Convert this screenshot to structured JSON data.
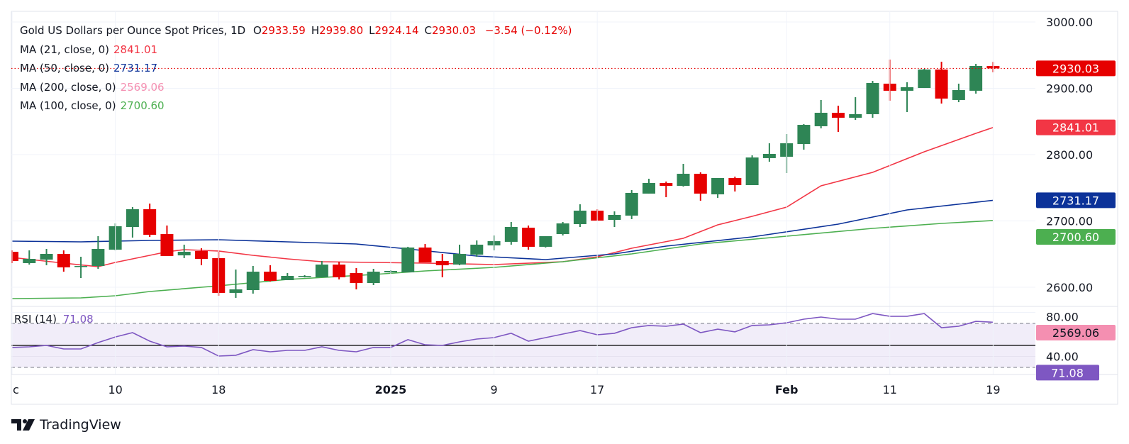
{
  "header": {
    "symbol": "Gold US Dollars per Ounce Spot Prices, 1D",
    "ohlc": [
      {
        "key": "O",
        "value": "2933.59"
      },
      {
        "key": "H",
        "value": "2939.80"
      },
      {
        "key": "L",
        "value": "2924.14"
      },
      {
        "key": "C",
        "value": "2930.03"
      }
    ],
    "change": "−3.54 (−0.12%)"
  },
  "moving_averages": [
    {
      "label": "MA (21, close, 0)",
      "value": "2841.01",
      "color": "#f23645"
    },
    {
      "label": "MA (50, close, 0)",
      "value": "2731.17",
      "color": "#0c3299"
    },
    {
      "label": "MA (200, close, 0)",
      "value": "2569.06",
      "color": "#f48fb1"
    },
    {
      "label": "MA (100, close, 0)",
      "value": "2700.60",
      "color": "#4caf50"
    }
  ],
  "rsi_legend": {
    "label": "RSI (14)",
    "value": "71.08",
    "color": "#7e57c2"
  },
  "brand": {
    "name": "TradingView"
  },
  "colors": {
    "up": "#2e8555",
    "down": "#e60000",
    "last_price": "#e60000",
    "rsi": "#7e57c2",
    "rsi_band": "#f1edf9"
  },
  "chart_data": {
    "type": "candlestick",
    "title": "Gold US Dollars per Ounce Spot Prices, 1D",
    "price_axis": {
      "ticks": [
        "3000.00",
        "2900.00",
        "2800.00",
        "2700.00",
        "2600.00"
      ],
      "range": [
        2560,
        3000
      ]
    },
    "rsi_axis": {
      "ticks": [
        "80.00",
        "40.00"
      ],
      "bands": [
        70,
        30
      ],
      "midline": 50
    },
    "x_ticks": [
      {
        "date": "2024-12-02",
        "label": "c"
      },
      {
        "date": "2024-12-10",
        "label": "10"
      },
      {
        "date": "2024-12-18",
        "label": "18"
      },
      {
        "date": "2025-01-01",
        "label": "2025"
      },
      {
        "date": "2025-01-09",
        "label": "9"
      },
      {
        "date": "2025-01-17",
        "label": "17"
      },
      {
        "date": "2025-02-03",
        "label": "Feb"
      },
      {
        "date": "2025-02-11",
        "label": "11"
      },
      {
        "date": "2025-02-19",
        "label": "19"
      }
    ],
    "grid": true,
    "candles_columns": [
      "date",
      "open",
      "high",
      "low",
      "close"
    ],
    "candles": [
      [
        "2024-12-02",
        2653.5,
        2655.6,
        2636.4,
        2639.6
      ],
      [
        "2024-12-03",
        2636.4,
        2655.6,
        2634.2,
        2642.8
      ],
      [
        "2024-12-04",
        2641.7,
        2657.8,
        2633.2,
        2650.3
      ],
      [
        "2024-12-05",
        2650.3,
        2655.6,
        2623.5,
        2630.0
      ],
      [
        "2024-12-06",
        2631.0,
        2646.0,
        2613.9,
        2632.1
      ],
      [
        "2024-12-09",
        2632.1,
        2677.0,
        2627.8,
        2657.8
      ],
      [
        "2024-12-10",
        2656.7,
        2696.3,
        2655.6,
        2692.0
      ],
      [
        "2024-12-11",
        2690.9,
        2720.9,
        2674.9,
        2717.7
      ],
      [
        "2024-12-12",
        2717.7,
        2726.2,
        2675.9,
        2679.1
      ],
      [
        "2024-12-13",
        2680.2,
        2693.1,
        2647.1,
        2647.1
      ],
      [
        "2024-12-16",
        2648.1,
        2664.2,
        2643.9,
        2653.5
      ],
      [
        "2024-12-17",
        2654.6,
        2658.8,
        2633.2,
        2642.8
      ],
      [
        "2024-12-18",
        2643.9,
        2653.5,
        2587.2,
        2591.5
      ],
      [
        "2024-12-19",
        2591.5,
        2626.7,
        2584.0,
        2596.8
      ],
      [
        "2024-12-20",
        2595.7,
        2632.1,
        2590.4,
        2623.5
      ],
      [
        "2024-12-23",
        2623.5,
        2633.2,
        2608.6,
        2609.6
      ],
      [
        "2024-12-24",
        2610.7,
        2621.4,
        2610.7,
        2617.1
      ],
      [
        "2024-12-25",
        2616.0,
        2618.2,
        2614.9,
        2617.1
      ],
      [
        "2024-12-26",
        2615.0,
        2639.6,
        2615.0,
        2634.2
      ],
      [
        "2024-12-27",
        2634.2,
        2638.5,
        2611.8,
        2615.0
      ],
      [
        "2024-12-30",
        2621.4,
        2628.9,
        2596.8,
        2606.4
      ],
      [
        "2024-12-31",
        2606.4,
        2627.8,
        2603.2,
        2623.5
      ],
      [
        "2025-01-01",
        2622.5,
        2625.7,
        2621.4,
        2624.6
      ],
      [
        "2025-01-02",
        2622.5,
        2661.0,
        2622.5,
        2659.9
      ],
      [
        "2025-01-03",
        2659.9,
        2665.2,
        2637.4,
        2637.4
      ],
      [
        "2025-01-06",
        2639.6,
        2650.3,
        2615.0,
        2633.2
      ],
      [
        "2025-01-07",
        2634.2,
        2664.2,
        2633.2,
        2650.3
      ],
      [
        "2025-01-08",
        2649.2,
        2670.6,
        2646.0,
        2664.2
      ],
      [
        "2025-01-09",
        2663.1,
        2678.1,
        2655.6,
        2669.5
      ],
      [
        "2025-01-10",
        2668.5,
        2698.4,
        2664.2,
        2690.9
      ],
      [
        "2025-01-13",
        2689.8,
        2693.1,
        2656.7,
        2661.0
      ],
      [
        "2025-01-14",
        2661.0,
        2677.0,
        2659.9,
        2677.0
      ],
      [
        "2025-01-15",
        2680.2,
        2698.4,
        2678.1,
        2696.3
      ],
      [
        "2025-01-16",
        2695.2,
        2725.1,
        2690.9,
        2715.5
      ],
      [
        "2025-01-17",
        2715.5,
        2717.7,
        2700.5,
        2700.5
      ],
      [
        "2025-01-20",
        2701.6,
        2714.4,
        2690.9,
        2709.1
      ],
      [
        "2025-01-21",
        2708.0,
        2746.5,
        2702.7,
        2742.3
      ],
      [
        "2025-01-22",
        2741.2,
        2763.6,
        2741.2,
        2757.2
      ],
      [
        "2025-01-23",
        2757.2,
        2759.4,
        2735.8,
        2752.9
      ],
      [
        "2025-01-24",
        2752.9,
        2786.1,
        2751.8,
        2771.1
      ],
      [
        "2025-01-27",
        2771.1,
        2773.3,
        2730.5,
        2741.2
      ],
      [
        "2025-01-28",
        2740.1,
        2764.7,
        2734.8,
        2764.7
      ],
      [
        "2025-01-29",
        2764.7,
        2766.8,
        2744.4,
        2754.0
      ],
      [
        "2025-01-30",
        2754.0,
        2798.9,
        2754.0,
        2795.7
      ],
      [
        "2025-01-31",
        2794.7,
        2817.1,
        2789.3,
        2801.1
      ],
      [
        "2025-02-03",
        2796.8,
        2831.0,
        2772.2,
        2817.1
      ],
      [
        "2025-02-04",
        2816.0,
        2846.0,
        2807.5,
        2844.9
      ],
      [
        "2025-02-05",
        2842.8,
        2882.4,
        2839.6,
        2863.1
      ],
      [
        "2025-02-06",
        2863.1,
        2873.8,
        2834.2,
        2855.6
      ],
      [
        "2025-02-07",
        2855.6,
        2886.6,
        2852.4,
        2861.0
      ],
      [
        "2025-02-10",
        2861.0,
        2911.2,
        2855.6,
        2908.0
      ],
      [
        "2025-02-11",
        2907.0,
        2943.3,
        2881.3,
        2896.3
      ],
      [
        "2025-02-12",
        2896.3,
        2909.1,
        2864.2,
        2901.6
      ],
      [
        "2025-02-13",
        2900.5,
        2929.4,
        2900.5,
        2928.3
      ],
      [
        "2025-02-14",
        2928.3,
        2940.1,
        2877.0,
        2884.5
      ],
      [
        "2025-02-17",
        2882.4,
        2907.0,
        2879.1,
        2897.3
      ],
      [
        "2025-02-18",
        2896.3,
        2936.9,
        2892.0,
        2933.7
      ],
      [
        "2025-02-19",
        2933.59,
        2939.8,
        2924.14,
        2930.03
      ]
    ],
    "series": [
      {
        "name": "MA (21, close, 0)",
        "color": "#f23645",
        "last": 2841.01,
        "points": [
          [
            "2024-12-02",
            2644.9
          ],
          [
            "2024-12-05",
            2636.4
          ],
          [
            "2024-12-09",
            2631.0
          ],
          [
            "2024-12-10",
            2637.4
          ],
          [
            "2024-12-12",
            2648.1
          ],
          [
            "2024-12-13",
            2653.5
          ],
          [
            "2024-12-16",
            2656.7
          ],
          [
            "2024-12-18",
            2654.6
          ],
          [
            "2024-12-20",
            2648.1
          ],
          [
            "2024-12-24",
            2642.8
          ],
          [
            "2024-12-26",
            2638.5
          ],
          [
            "2024-12-31",
            2637.4
          ],
          [
            "2025-01-03",
            2636.4
          ],
          [
            "2025-01-09",
            2634.2
          ],
          [
            "2025-01-15",
            2638.5
          ],
          [
            "2025-01-17",
            2645.9
          ],
          [
            "2025-01-21",
            2658.8
          ],
          [
            "2025-01-24",
            2673.8
          ],
          [
            "2025-01-28",
            2694.1
          ],
          [
            "2025-01-30",
            2707.0
          ],
          [
            "2025-02-03",
            2720.9
          ],
          [
            "2025-02-05",
            2752.9
          ],
          [
            "2025-02-10",
            2773.3
          ],
          [
            "2025-02-13",
            2804.3
          ],
          [
            "2025-02-18",
            2832.1
          ],
          [
            "2025-02-19",
            2841.01
          ]
        ]
      },
      {
        "name": "MA (50, close, 0)",
        "color": "#0c3299",
        "last": 2731.17,
        "points": [
          [
            "2024-12-02",
            2669.5
          ],
          [
            "2024-12-06",
            2668.5
          ],
          [
            "2024-12-12",
            2670.6
          ],
          [
            "2024-12-18",
            2671.7
          ],
          [
            "2024-12-24",
            2668.5
          ],
          [
            "2024-12-30",
            2665.2
          ],
          [
            "2025-01-02",
            2657.8
          ],
          [
            "2025-01-08",
            2647.1
          ],
          [
            "2025-01-14",
            2641.7
          ],
          [
            "2025-01-20",
            2650.3
          ],
          [
            "2025-01-23",
            2662.0
          ],
          [
            "2025-01-30",
            2675.9
          ],
          [
            "2025-02-06",
            2695.2
          ],
          [
            "2025-02-12",
            2716.6
          ],
          [
            "2025-02-19",
            2731.17
          ]
        ]
      },
      {
        "name": "MA (200, close, 0)",
        "color": "#f48fb1",
        "last": 2569.06,
        "points": []
      },
      {
        "name": "MA (100, close, 0)",
        "color": "#4caf50",
        "last": 2700.6,
        "points": [
          [
            "2024-12-02",
            2582.9
          ],
          [
            "2024-12-06",
            2584.0
          ],
          [
            "2024-12-10",
            2587.2
          ],
          [
            "2024-12-12",
            2593.6
          ],
          [
            "2024-12-18",
            2602.1
          ],
          [
            "2024-12-24",
            2611.8
          ],
          [
            "2024-12-31",
            2619.3
          ],
          [
            "2025-01-03",
            2624.6
          ],
          [
            "2025-01-09",
            2629.9
          ],
          [
            "2025-01-15",
            2638.5
          ],
          [
            "2025-01-21",
            2650.3
          ],
          [
            "2025-01-27",
            2665.2
          ],
          [
            "2025-02-03",
            2677.0
          ],
          [
            "2025-02-10",
            2688.8
          ],
          [
            "2025-02-14",
            2696.3
          ],
          [
            "2025-02-19",
            2700.6
          ]
        ]
      }
    ],
    "rsi": {
      "name": "RSI (14)",
      "last": 71.08,
      "values": [
        48.1,
        48.7,
        50.0,
        46.8,
        46.8,
        52.6,
        57.7,
        61.6,
        53.9,
        48.7,
        49.4,
        48.1,
        40.3,
        41.0,
        46.1,
        44.2,
        45.5,
        45.5,
        48.7,
        45.5,
        44.2,
        48.1,
        48.1,
        55.2,
        50.6,
        50.0,
        53.2,
        55.8,
        57.1,
        61.0,
        53.9,
        57.1,
        60.3,
        63.5,
        59.7,
        61.0,
        66.1,
        68.1,
        67.4,
        69.4,
        61.6,
        64.8,
        62.3,
        68.1,
        68.7,
        70.6,
        73.9,
        75.8,
        73.9,
        73.9,
        79.0,
        76.5,
        76.5,
        79.0,
        66.1,
        67.4,
        71.9,
        71.08
      ]
    },
    "price_tags": [
      {
        "value": "2930.03",
        "price": 2930.03,
        "bg": "#e60000",
        "fg": "#ffffff"
      },
      {
        "value": "2841.01",
        "price": 2841.01,
        "bg": "#f23645",
        "fg": "#ffffff"
      },
      {
        "value": "2731.17",
        "price": 2731.17,
        "bg": "#0c3299",
        "fg": "#ffffff"
      },
      {
        "value": "2700.60",
        "price": 2700.6,
        "bg": "#4caf50",
        "fg": "#ffffff"
      },
      {
        "value": "2569.06",
        "price": 2569.06,
        "bg": "#f48fb1",
        "fg": "#131722"
      }
    ],
    "rsi_tag": {
      "value": "71.08",
      "bg": "#7e57c2",
      "fg": "#ffffff"
    }
  }
}
